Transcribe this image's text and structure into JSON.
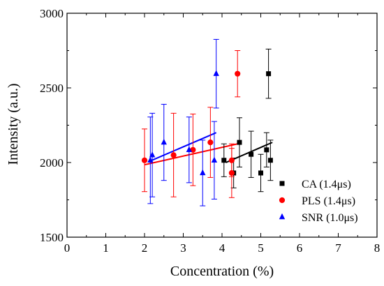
{
  "chart_data": {
    "type": "scatter",
    "xlabel": "Concentration (%)",
    "ylabel": "Intensity (a.u.)",
    "xlim": [
      0,
      8
    ],
    "ylim": [
      1500,
      3000
    ],
    "xticks": [
      "0",
      "1",
      "2",
      "3",
      "4",
      "5",
      "6",
      "7",
      "8"
    ],
    "yticks": [
      "1500",
      "2000",
      "2500",
      "3000"
    ],
    "grid": false,
    "legend_position": "bottom-right",
    "series": [
      {
        "name": "CA (1.4μs)",
        "color": "#000000",
        "marker": "square",
        "points": [
          {
            "x": 4.05,
            "y": 2015,
            "err": 110
          },
          {
            "x": 4.3,
            "y": 1930,
            "err": 100
          },
          {
            "x": 4.45,
            "y": 2135,
            "err": 165
          },
          {
            "x": 4.75,
            "y": 2055,
            "err": 155
          },
          {
            "x": 5.0,
            "y": 1930,
            "err": 125
          },
          {
            "x": 5.15,
            "y": 2085,
            "err": 115
          },
          {
            "x": 5.25,
            "y": 2015,
            "err": 135
          },
          {
            "x": 5.2,
            "y": 2595,
            "err": 165
          }
        ],
        "fit": {
          "x": [
            4.1,
            5.3
          ],
          "y": [
            2000,
            2135
          ]
        }
      },
      {
        "name": "PLS (1.4μs)",
        "color": "#ff0000",
        "marker": "circle",
        "points": [
          {
            "x": 2.0,
            "y": 2015,
            "err": 210
          },
          {
            "x": 2.75,
            "y": 2050,
            "err": 280
          },
          {
            "x": 3.25,
            "y": 2085,
            "err": 240
          },
          {
            "x": 3.7,
            "y": 2135,
            "err": 235
          },
          {
            "x": 4.25,
            "y": 1930,
            "err": 165
          },
          {
            "x": 4.25,
            "y": 2015,
            "err": 110
          },
          {
            "x": 4.4,
            "y": 2595,
            "err": 155
          }
        ],
        "fit": {
          "x": [
            2.0,
            4.4
          ],
          "y": [
            1985,
            2125
          ]
        }
      },
      {
        "name": "SNR (1.0μs)",
        "color": "#0000ff",
        "marker": "triangle",
        "points": [
          {
            "x": 2.15,
            "y": 2015,
            "err": 290
          },
          {
            "x": 2.2,
            "y": 2050,
            "err": 280
          },
          {
            "x": 2.5,
            "y": 2135,
            "err": 255
          },
          {
            "x": 3.15,
            "y": 2085,
            "err": 220
          },
          {
            "x": 3.5,
            "y": 1930,
            "err": 220
          },
          {
            "x": 3.8,
            "y": 2015,
            "err": 260
          },
          {
            "x": 3.85,
            "y": 2595,
            "err": 230
          }
        ],
        "fit": {
          "x": [
            2.1,
            3.85
          ],
          "y": [
            2005,
            2200
          ]
        }
      }
    ]
  }
}
